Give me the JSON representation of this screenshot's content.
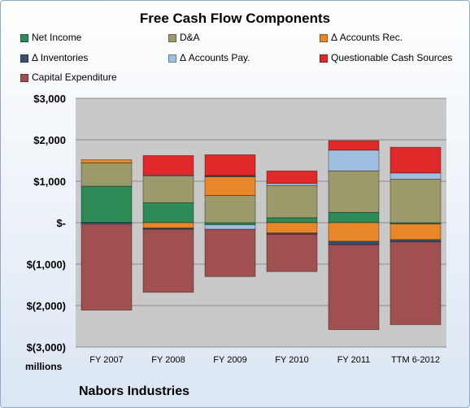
{
  "chart_data": {
    "type": "bar",
    "stacked": true,
    "title": "Free Cash Flow Components",
    "ylabel_units": "millions",
    "footer": "Nabors Industries",
    "categories": [
      "FY 2007",
      "FY 2008",
      "FY 2009",
      "FY 2010",
      "FY 2011",
      "TTM 6-2012"
    ],
    "ylim": [
      -3000,
      3000
    ],
    "yticks": [
      3000,
      2000,
      1000,
      0,
      -1000,
      -2000,
      -3000
    ],
    "ytick_labels": [
      "$3,000",
      "$2,000",
      "$1,000",
      "$-",
      "$(1,000)",
      "$(2,000)",
      "$(3,000)"
    ],
    "grid": true,
    "legend_position": "top",
    "series": [
      {
        "name": "Net Income",
        "color": "#2e8b57",
        "values": [
          880,
          480,
          -50,
          120,
          250,
          -30
        ]
      },
      {
        "name": "D&A",
        "color": "#9c9a6a",
        "values": [
          560,
          650,
          660,
          780,
          1000,
          1050
        ]
      },
      {
        "name": "Δ Accounts Rec.",
        "color": "#e8862a",
        "values": [
          80,
          -130,
          450,
          -250,
          -450,
          -380
        ]
      },
      {
        "name": "Δ Inventories",
        "color": "#3a5070",
        "values": [
          -20,
          -30,
          30,
          -30,
          -80,
          -50
        ]
      },
      {
        "name": "Δ Accounts Pay.",
        "color": "#9fbee0",
        "values": [
          -20,
          20,
          -110,
          50,
          500,
          150
        ]
      },
      {
        "name": "Questionable Cash Sources",
        "color": "#e02a2a",
        "values": [
          0,
          470,
          500,
          300,
          230,
          620
        ]
      },
      {
        "name": "Capital Expenditure",
        "color": "#a05050",
        "values": [
          -2070,
          -1520,
          -1140,
          -900,
          -2050,
          -2000
        ]
      }
    ]
  }
}
